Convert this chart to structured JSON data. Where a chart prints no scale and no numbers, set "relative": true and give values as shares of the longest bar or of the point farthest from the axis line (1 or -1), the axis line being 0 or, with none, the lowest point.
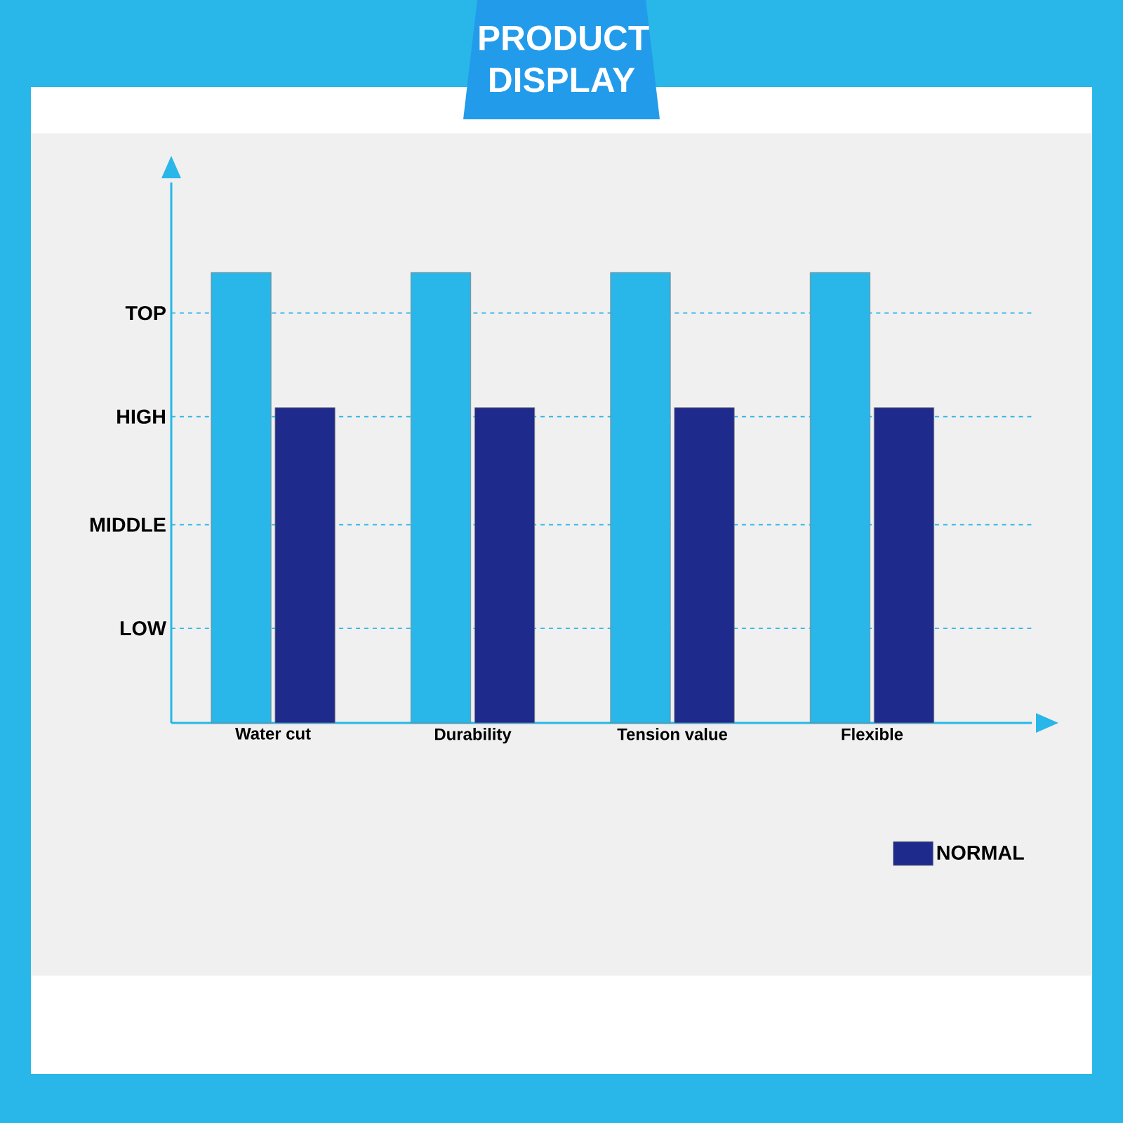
{
  "chart_data": {
    "type": "bar",
    "title": "PRODUCT DISPLAY",
    "relative": true,
    "categories": [
      "Water cut",
      "Durability",
      "Tension value",
      "Flexible"
    ],
    "series": [
      {
        "color": "#29b6e8",
        "values": [
          1,
          1,
          1,
          1
        ]
      },
      {
        "name": "NORMAL",
        "color": "#1e2a8c",
        "values": [
          0.7,
          0.7,
          0.7,
          0.7
        ]
      }
    ],
    "ref_lines": [
      {
        "axis": "y",
        "value": 0.21,
        "label": "LOW",
        "color": "#29b6e8",
        "line_style": "dashed"
      },
      {
        "axis": "y",
        "value": 0.44,
        "label": "MIDDLE",
        "color": "#29b6e8",
        "line_style": "dashed"
      },
      {
        "axis": "y",
        "value": 0.68,
        "label": "HIGH",
        "color": "#29b6e8",
        "line_style": "dashed"
      },
      {
        "axis": "y",
        "value": 0.91,
        "label": "TOP",
        "color": "#29b6e8",
        "line_style": "dashed"
      }
    ],
    "legend": "bottom right"
  }
}
